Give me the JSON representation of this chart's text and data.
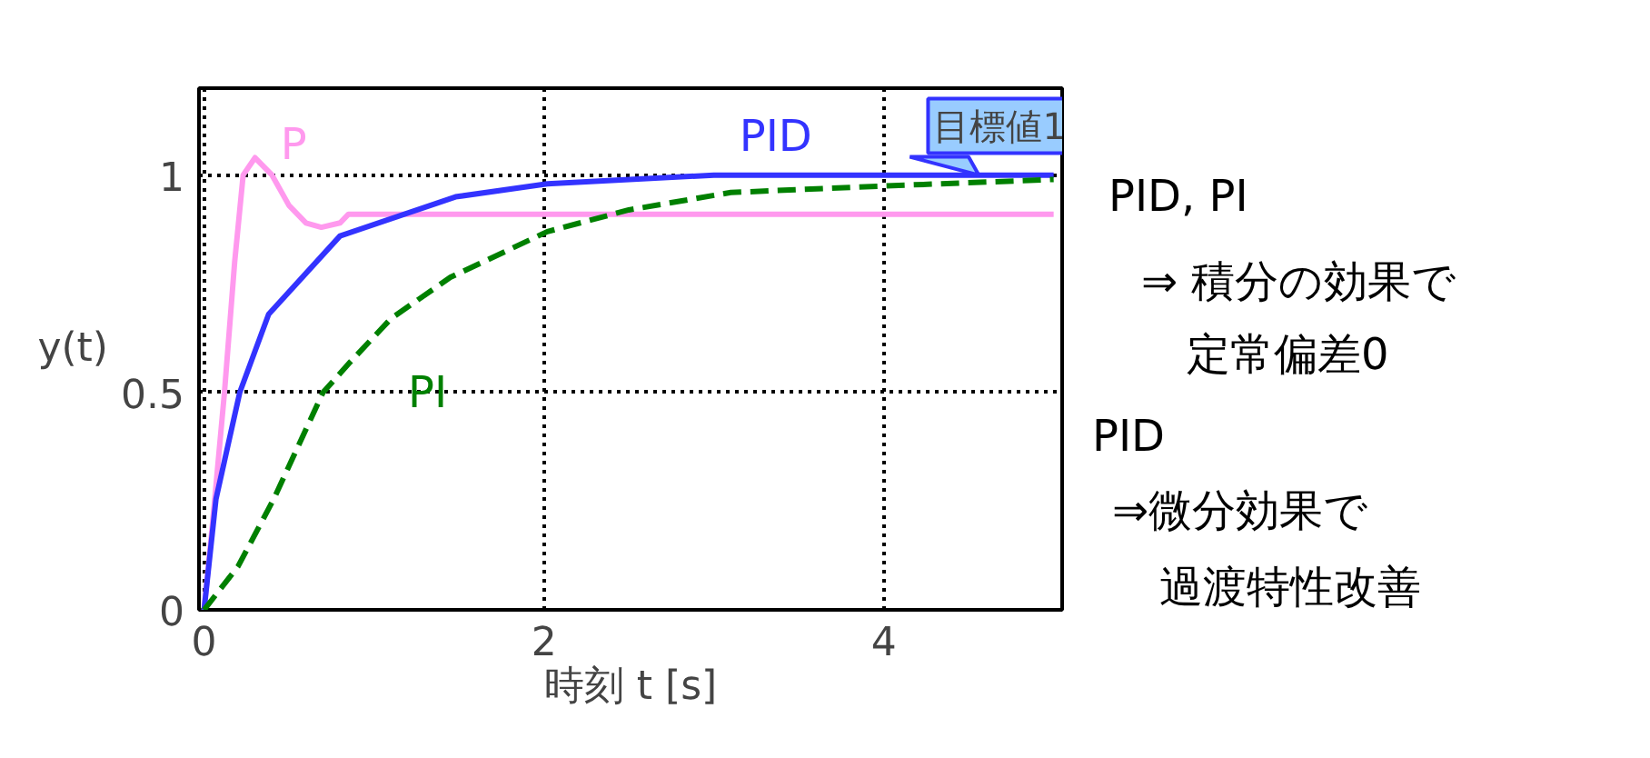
{
  "chart_data": {
    "type": "line",
    "xlabel": "時刻 t [s]",
    "ylabel": "y(t)",
    "xlim": [
      -0.03,
      5.05
    ],
    "ylim": [
      0,
      1.2
    ],
    "xticks": [
      0,
      2,
      4
    ],
    "yticks": [
      0,
      0.5,
      1
    ],
    "grid": true,
    "line_style": "solid",
    "marker": "none",
    "series": [
      {
        "name": "P",
        "color": "#ff99ee",
        "x": [
          0,
          0.05,
          0.12,
          0.18,
          0.23,
          0.3,
          0.4,
          0.5,
          0.6,
          0.69,
          0.8,
          0.85,
          1.5,
          5
        ],
        "values": [
          0,
          0.2,
          0.5,
          0.8,
          1.0,
          1.04,
          1.0,
          0.93,
          0.89,
          0.88,
          0.89,
          0.91,
          0.91,
          0.91
        ]
      },
      {
        "name": "PID",
        "color": "#3333ff",
        "x": [
          0,
          0.07,
          0.21,
          0.38,
          0.8,
          1.48,
          2.02,
          3,
          4,
          5
        ],
        "values": [
          0,
          0.255,
          0.5,
          0.68,
          0.86,
          0.95,
          0.98,
          1.0,
          1.0,
          1.0
        ]
      },
      {
        "name": "PI",
        "color": "#008000",
        "line_style": "dashed",
        "x": [
          0,
          0.2,
          0.41,
          0.7,
          0.86,
          1.1,
          1.45,
          2.02,
          2.5,
          3.1,
          4,
          5
        ],
        "values": [
          0,
          0.1,
          0.255,
          0.5,
          0.57,
          0.67,
          0.765,
          0.87,
          0.92,
          0.96,
          0.975,
          0.99
        ]
      }
    ],
    "annotations": [
      {
        "text": "目標値1",
        "x": 4.56,
        "y": 1.0
      },
      "PID, PI",
      "⇒ 積分の効果で",
      "定常偏差0",
      "PID",
      "⇒微分効果で",
      "過渡特性改善"
    ]
  }
}
